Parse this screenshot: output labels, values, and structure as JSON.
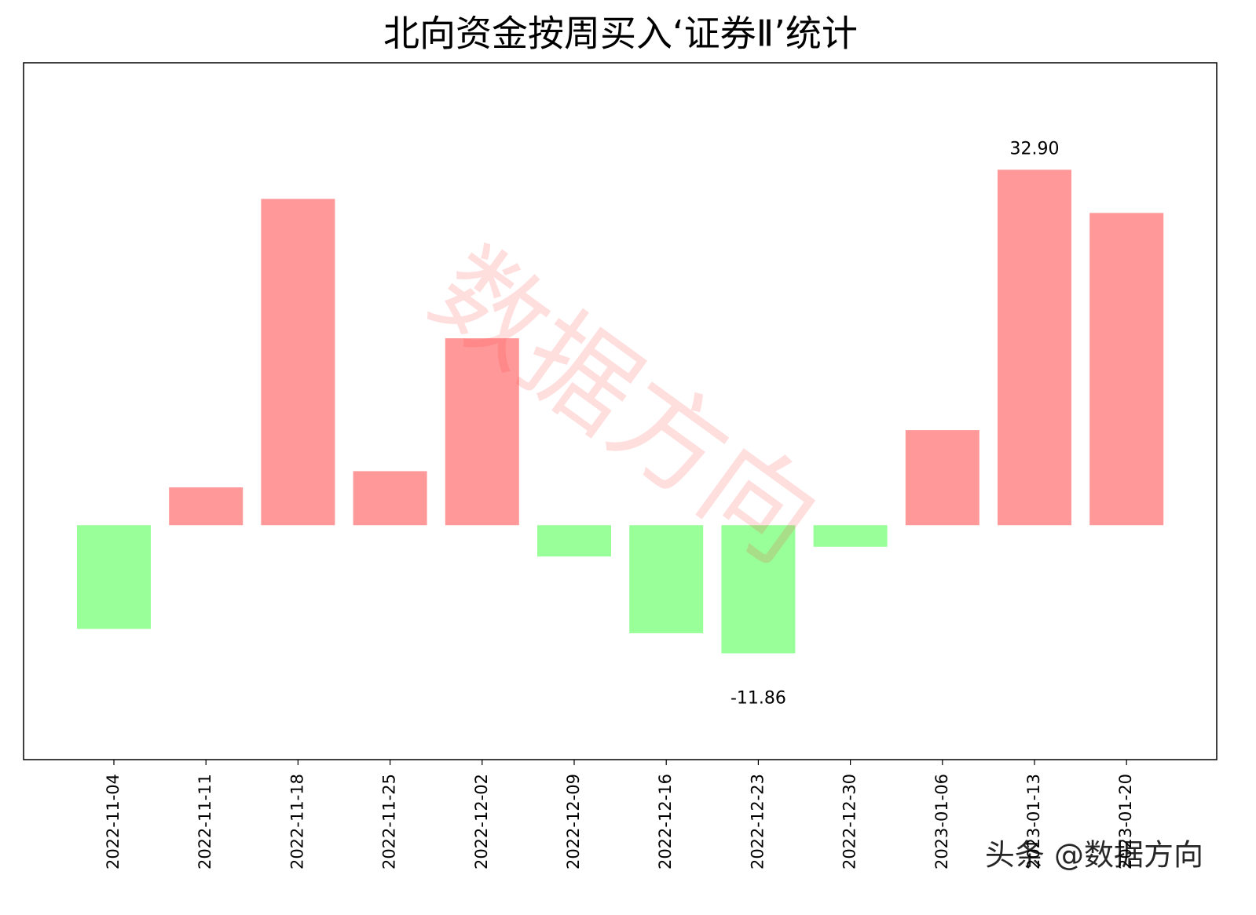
{
  "chart_data": {
    "type": "bar",
    "title": "北向资金按周买入‘证券Ⅱ’统计",
    "categories": [
      "2022-11-04",
      "2022-11-11",
      "2022-11-18",
      "2022-11-25",
      "2022-12-02",
      "2022-12-09",
      "2022-12-16",
      "2022-12-23",
      "2022-12-30",
      "2023-01-06",
      "2023-01-13",
      "2023-01-20"
    ],
    "values": [
      -9.6,
      3.5,
      30.2,
      5.0,
      17.3,
      -2.9,
      -10.0,
      -11.86,
      -2.0,
      8.8,
      32.9,
      28.9
    ],
    "value_labels": [
      null,
      null,
      null,
      null,
      null,
      null,
      null,
      "-11.86",
      null,
      null,
      "32.90",
      null
    ],
    "color_positive": "#ff9999",
    "color_negative": "#99ff99",
    "ylim": [
      -21.7,
      42.8
    ],
    "watermark": "数据方向",
    "source": "头条 @数据方向"
  }
}
